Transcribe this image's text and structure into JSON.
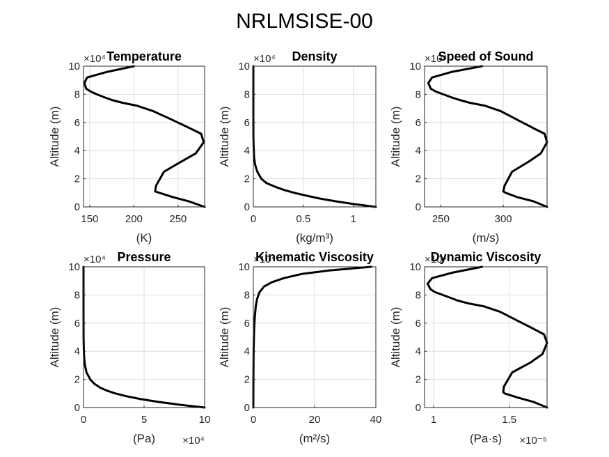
{
  "figure": {
    "title": "NRLMSISE-00"
  },
  "chart_data": [
    {
      "type": "line",
      "title": "Temperature",
      "xlabel": "(K)",
      "ylabel": "Altitude (m)",
      "xlim": [
        143,
        280
      ],
      "ylim": [
        0,
        100000
      ],
      "xticks": [
        150,
        200,
        250
      ],
      "xtick_labels": [
        "150",
        "200",
        "250"
      ],
      "x_exponent": "",
      "yticks": [
        0,
        20000,
        40000,
        60000,
        80000,
        100000
      ],
      "ytick_labels": [
        "0",
        "2",
        "4",
        "6",
        "8",
        "10"
      ],
      "y_exponent": "×10⁴",
      "grid": true,
      "series": [
        {
          "x": [
            280,
            262,
            244,
            229,
            224,
            225,
            234,
            253,
            270,
            279,
            276,
            263,
            243,
            222,
            203,
            187,
            175,
            166,
            158,
            151,
            146,
            144,
            147,
            170,
            200
          ],
          "y": [
            0,
            4000,
            7000,
            10000,
            11000,
            15000,
            25000,
            32000,
            38000,
            46000,
            52000,
            56000,
            62000,
            68000,
            72000,
            74000,
            76000,
            78000,
            80000,
            82000,
            84000,
            88000,
            92000,
            96000,
            100000
          ]
        }
      ]
    },
    {
      "type": "line",
      "title": "Density",
      "xlabel": "(kg/m³)",
      "ylabel": "Altitude (m)",
      "xlim": [
        0,
        1.225
      ],
      "ylim": [
        0,
        100000
      ],
      "xticks": [
        0,
        0.5,
        1
      ],
      "xtick_labels": [
        "0",
        "0.5",
        "1"
      ],
      "x_exponent": "",
      "yticks": [
        0,
        20000,
        40000,
        60000,
        80000,
        100000
      ],
      "ytick_labels": [
        "0",
        "2",
        "4",
        "6",
        "8",
        "10"
      ],
      "y_exponent": "×10⁴",
      "grid": true,
      "series": [
        {
          "x": [
            1.225,
            1.01,
            0.82,
            0.66,
            0.53,
            0.41,
            0.31,
            0.23,
            0.13,
            0.08,
            0.04,
            0.018,
            0.008,
            0.004,
            0.001,
            0.0001,
            1e-05
          ],
          "y": [
            0,
            2000,
            4000,
            6000,
            8000,
            10000,
            12000,
            14000,
            17000,
            20000,
            25000,
            30000,
            35000,
            40000,
            50000,
            70000,
            100000
          ]
        }
      ]
    },
    {
      "type": "line",
      "title": "Speed of Sound",
      "xlabel": "(m/s)",
      "ylabel": "Altitude (m)",
      "xlim": [
        237,
        335
      ],
      "ylim": [
        0,
        100000
      ],
      "xticks": [
        250,
        300
      ],
      "xtick_labels": [
        "250",
        "300"
      ],
      "x_exponent": "",
      "yticks": [
        0,
        20000,
        40000,
        60000,
        80000,
        100000
      ],
      "ytick_labels": [
        "0",
        "2",
        "4",
        "6",
        "8",
        "10"
      ],
      "y_exponent": "×10⁴",
      "grid": true,
      "series": [
        {
          "x": [
            335,
            324,
            311,
            302,
            300,
            301,
            307,
            320,
            330,
            335,
            333,
            324,
            311,
            298,
            285,
            273,
            265,
            258,
            252,
            246,
            242,
            240,
            243,
            259,
            283
          ],
          "y": [
            0,
            4000,
            7000,
            10000,
            11000,
            15000,
            25000,
            32000,
            38000,
            46000,
            52000,
            56000,
            62000,
            68000,
            72000,
            74000,
            76000,
            78000,
            80000,
            82000,
            84000,
            88000,
            92000,
            96000,
            100000
          ]
        }
      ]
    },
    {
      "type": "line",
      "title": "Pressure",
      "xlabel": "(Pa)",
      "ylabel": "Altitude (m)",
      "xlim": [
        0,
        100000
      ],
      "ylim": [
        0,
        100000
      ],
      "xticks": [
        0,
        50000,
        100000
      ],
      "xtick_labels": [
        "0",
        "5",
        "10"
      ],
      "x_exponent": "×10⁴",
      "yticks": [
        0,
        20000,
        40000,
        60000,
        80000,
        100000
      ],
      "ytick_labels": [
        "0",
        "2",
        "4",
        "6",
        "8",
        "10"
      ],
      "y_exponent": "×10⁴",
      "grid": true,
      "series": [
        {
          "x": [
            100000,
            79500,
            61700,
            47200,
            35600,
            26400,
            19400,
            14100,
            8800,
            5500,
            2500,
            1200,
            570,
            290,
            80,
            5,
            1
          ],
          "y": [
            0,
            2000,
            4000,
            6000,
            8000,
            10000,
            12000,
            14000,
            17000,
            20000,
            25000,
            30000,
            35000,
            40000,
            50000,
            70000,
            100000
          ]
        }
      ]
    },
    {
      "type": "line",
      "title": "Kinematic Viscosity",
      "xlabel": "(m²/s)",
      "ylabel": "Altitude (m)",
      "xlim": [
        0,
        40
      ],
      "ylim": [
        0,
        100000
      ],
      "xticks": [
        0,
        20,
        40
      ],
      "xtick_labels": [
        "0",
        "20",
        "40"
      ],
      "x_exponent": "",
      "yticks": [
        0,
        20000,
        40000,
        60000,
        80000,
        100000
      ],
      "ytick_labels": [
        "0",
        "2",
        "4",
        "6",
        "8",
        "10"
      ],
      "y_exponent": "×10⁴",
      "grid": true,
      "series": [
        {
          "x": [
            0.0,
            0.02,
            0.1,
            0.25,
            0.5,
            0.8,
            1.2,
            2.0,
            3.5,
            6.0,
            10.0,
            16.0,
            25.0,
            38.5
          ],
          "y": [
            0,
            20000,
            40000,
            55000,
            65000,
            72000,
            77000,
            82000,
            86000,
            89000,
            92000,
            95000,
            97500,
            100000
          ]
        }
      ]
    },
    {
      "type": "line",
      "title": "Dynamic Viscosity",
      "xlabel": "(Pa·s)",
      "ylabel": "Altitude (m)",
      "xlim": [
        9.4e-06,
        1.75e-05
      ],
      "ylim": [
        0,
        100000
      ],
      "xticks": [
        1e-05,
        1.5e-05
      ],
      "xtick_labels": [
        "1",
        "1.5"
      ],
      "x_exponent": "×10⁻⁵",
      "yticks": [
        0,
        20000,
        40000,
        60000,
        80000,
        100000
      ],
      "ytick_labels": [
        "0",
        "2",
        "4",
        "6",
        "8",
        "10"
      ],
      "y_exponent": "×10⁴",
      "grid": true,
      "series": [
        {
          "x": [
            1.75e-05,
            1.66e-05,
            1.56e-05,
            1.47e-05,
            1.46e-05,
            1.465e-05,
            1.52e-05,
            1.64e-05,
            1.72e-05,
            1.75e-05,
            1.73e-05,
            1.66e-05,
            1.55e-05,
            1.44e-05,
            1.33e-05,
            1.23e-05,
            1.16e-05,
            1.11e-05,
            1.06e-05,
            1.01e-05,
            9.8e-06,
            9.6e-06,
            9.9e-06,
            1.13e-05,
            1.32e-05
          ],
          "y": [
            0,
            4000,
            7000,
            10000,
            11000,
            15000,
            25000,
            32000,
            38000,
            46000,
            52000,
            56000,
            62000,
            68000,
            72000,
            74000,
            76000,
            78000,
            80000,
            82000,
            84000,
            88000,
            92000,
            96000,
            100000
          ]
        }
      ]
    }
  ]
}
